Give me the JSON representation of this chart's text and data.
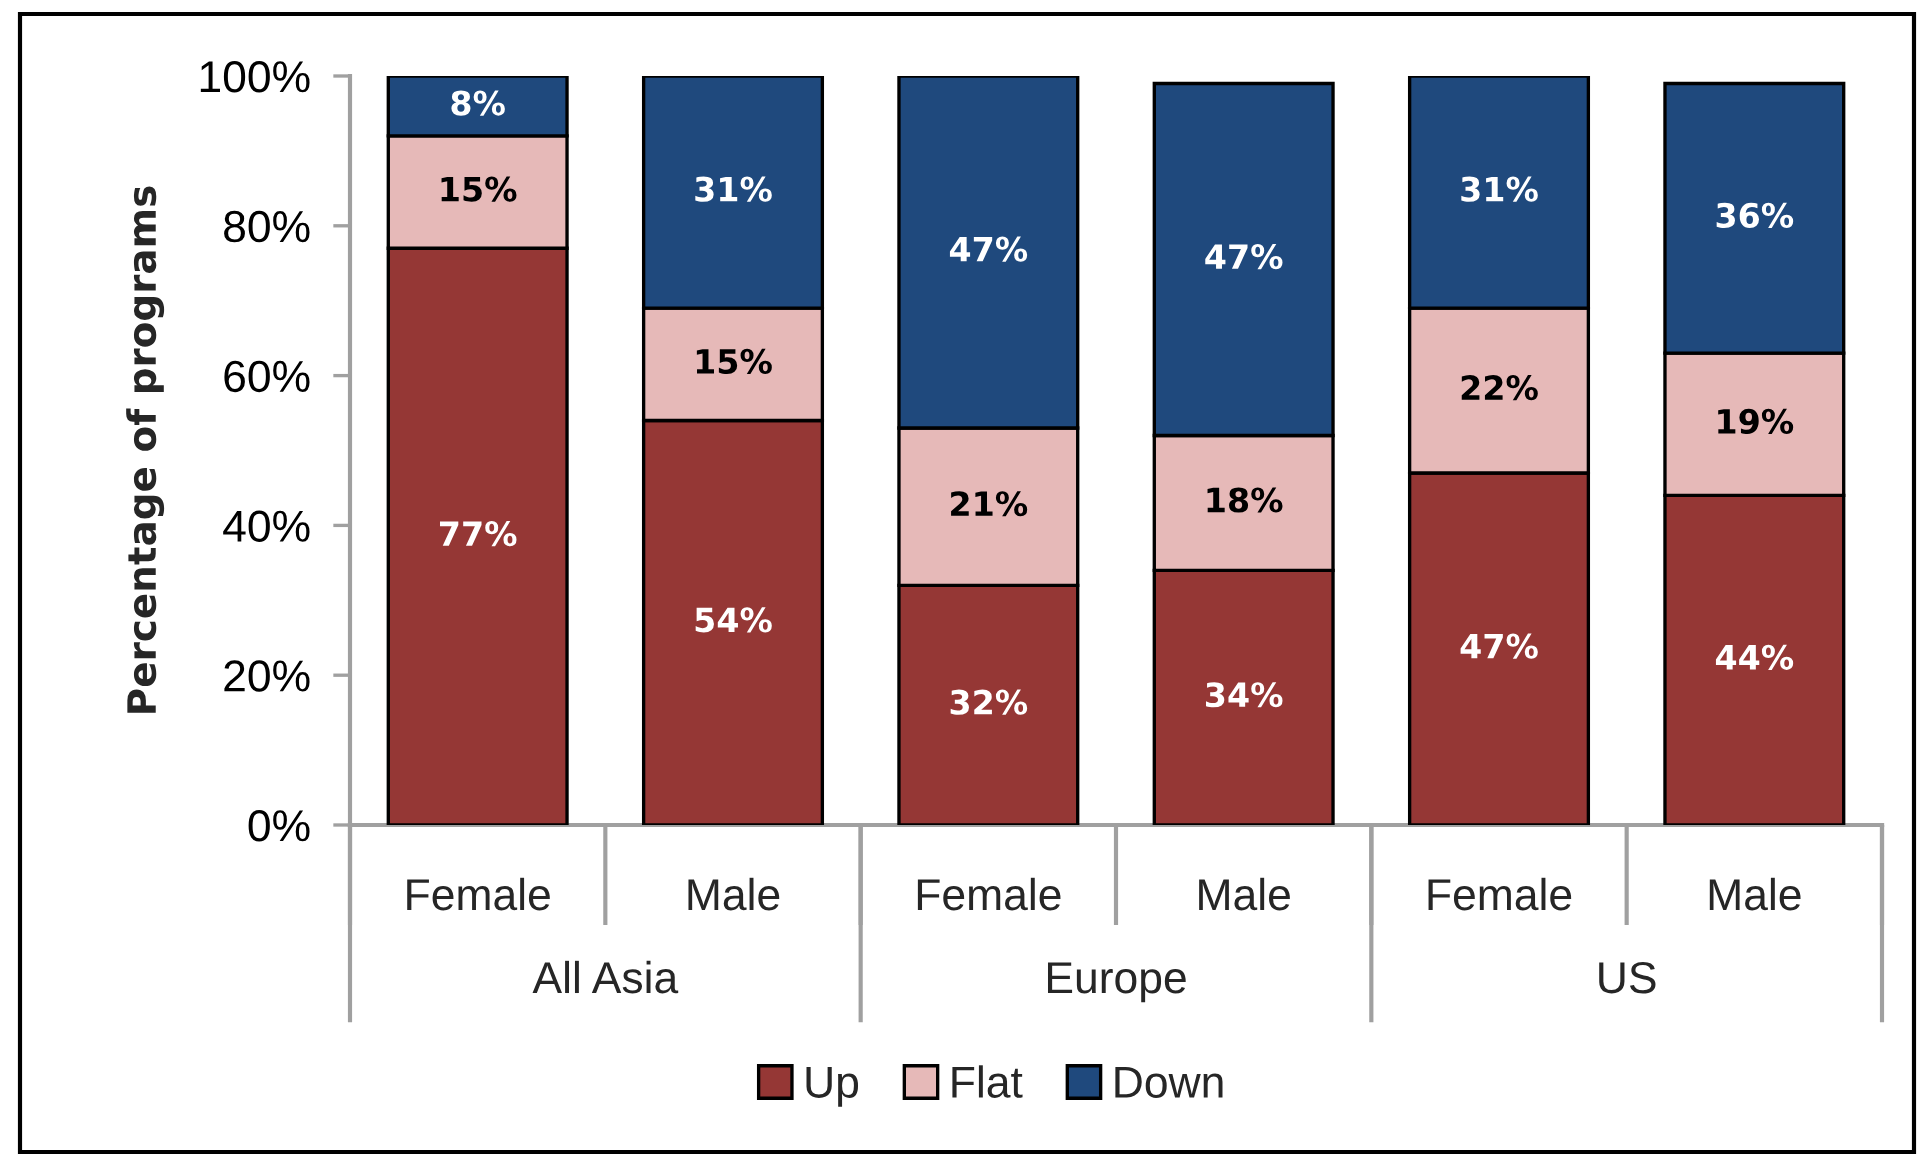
{
  "chart_data": {
    "type": "bar",
    "stacked": true,
    "ylabel": "Percentage of programs",
    "categories": [
      "Female",
      "Male",
      "Female",
      "Male",
      "Female",
      "Male"
    ],
    "annotations": [
      "All Asia",
      "Europe",
      "US"
    ],
    "series": [
      {
        "name": "Up",
        "color": "#953735",
        "values": [
          77,
          54,
          32,
          34,
          47,
          44
        ],
        "value_labels": [
          "77%",
          "54%",
          "32%",
          "34%",
          "47%",
          "44%"
        ]
      },
      {
        "name": "Flat",
        "color": "#e6b9b8",
        "values": [
          15,
          15,
          21,
          18,
          22,
          19
        ],
        "value_labels": [
          "15%",
          "15%",
          "21%",
          "18%",
          "22%",
          "19%"
        ]
      },
      {
        "name": "Down",
        "color": "#1f497d",
        "values": [
          8,
          31,
          47,
          47,
          31,
          36
        ],
        "value_labels": [
          "8%",
          "31%",
          "47%",
          "47%",
          "31%",
          "36%"
        ]
      }
    ],
    "ylim": [
      0,
      100
    ],
    "yticks": [
      {
        "value": 0,
        "label": "0%"
      },
      {
        "value": 20,
        "label": "20%"
      },
      {
        "value": 40,
        "label": "40%"
      },
      {
        "value": 60,
        "label": "60%"
      },
      {
        "value": 80,
        "label": "80%"
      },
      {
        "value": 100,
        "label": "100%"
      }
    ],
    "legend": "bottom"
  }
}
